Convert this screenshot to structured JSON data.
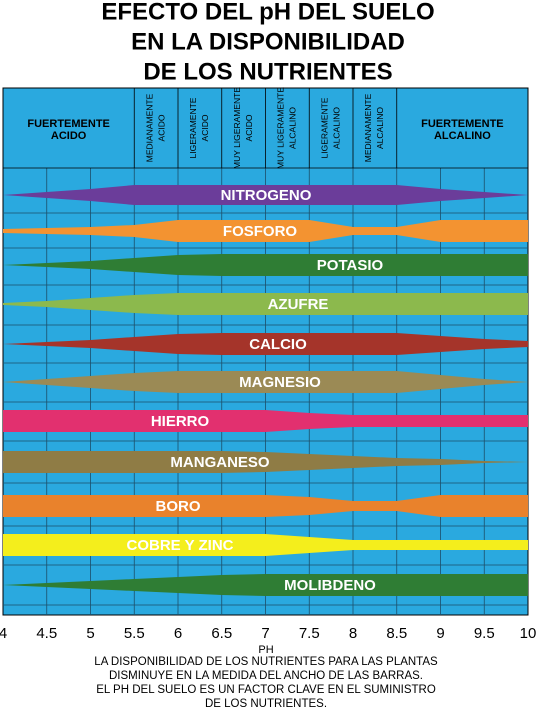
{
  "header": {
    "title_lines": [
      "EFECTO DEL pH DEL SUELO",
      "EN LA DISPONIBILIDAD",
      "DE LOS NUTRIENTES"
    ]
  },
  "zones": [
    [
      "FUERTEMENTE",
      "ACIDO"
    ],
    [
      "MEDIANAMENTE",
      "ACIDO"
    ],
    [
      "LIGERAMENTE",
      "ACIDO"
    ],
    [
      "MUY LIGERAMENTE",
      "ACIDO"
    ],
    [
      "MUY LIGERAMENTE",
      "ALCALINO"
    ],
    [
      "LIGERAMENTE",
      "ALCALINO"
    ],
    [
      "MEDIANAMENTE",
      "ALCALINO"
    ],
    [
      "FUERTEMENTE",
      "ALCALINO"
    ]
  ],
  "nutrients": [
    {
      "name": "NITROGENO",
      "color": "#6b3d9a"
    },
    {
      "name": "FOSFORO",
      "color": "#f39331"
    },
    {
      "name": "POTASIO",
      "color": "#2f7d34"
    },
    {
      "name": "AZUFRE",
      "color": "#8cb94d"
    },
    {
      "name": "CALCIO",
      "color": "#a5342a"
    },
    {
      "name": "MAGNESIO",
      "color": "#9b8a55"
    },
    {
      "name": "HIERRO",
      "color": "#e2306f"
    },
    {
      "name": "MANGANESO",
      "color": "#8f7c45"
    },
    {
      "name": "BORO",
      "color": "#e9822c"
    },
    {
      "name": "COBRE Y ZINC",
      "color": "#f4ee1c"
    },
    {
      "name": "MOLIBDENO",
      "color": "#2f7d34"
    }
  ],
  "axis": {
    "label": "PH",
    "ticks": [
      4,
      4.5,
      5,
      5.5,
      6,
      6.5,
      7,
      7.5,
      8,
      8.5,
      9,
      9.5,
      10
    ]
  },
  "footer": [
    "LA DISPONIBILIDAD DE LOS NUTRIENTES PARA LAS PLANTAS",
    "DISMINUYE EN LA MEDIDA DEL ANCHO DE LAS BARRAS.",
    "EL PH DEL SUELO ES UN FACTOR CLAVE EN EL SUMINISTRO",
    "DE LOS NUTRIENTES."
  ]
}
